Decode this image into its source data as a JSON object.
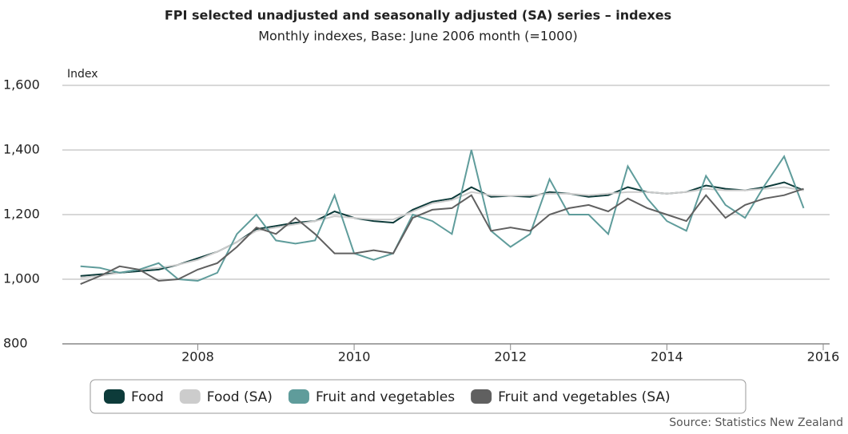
{
  "chart_data": {
    "type": "line",
    "title": "FPI selected unadjusted and seasonally adjusted (SA) series – indexes",
    "subtitle": "Monthly indexes, Base: June 2006 month (=1000)",
    "ylabel": "Index",
    "source": "Source: Statistics New Zealand",
    "x": [
      2006.5,
      2006.75,
      2007,
      2007.25,
      2007.5,
      2007.75,
      2008,
      2008.25,
      2008.5,
      2008.75,
      2009,
      2009.25,
      2009.5,
      2009.75,
      2010,
      2010.25,
      2010.5,
      2010.75,
      2011,
      2011.25,
      2011.5,
      2011.75,
      2012,
      2012.25,
      2012.5,
      2012.75,
      2013,
      2013.25,
      2013.5,
      2013.75,
      2014,
      2014.25,
      2014.5,
      2014.75,
      2015,
      2015.25,
      2015.5,
      2015.75
    ],
    "xlim": [
      2006.37,
      2016
    ],
    "xticks": [
      2008,
      2010,
      2012,
      2014,
      2016
    ],
    "ylim": [
      800,
      1600
    ],
    "yticks": [
      {
        "value": 800,
        "label": "800"
      },
      {
        "value": 1000,
        "label": "1,000"
      },
      {
        "value": 1200,
        "label": "1,200"
      },
      {
        "value": 1400,
        "label": "1,400"
      },
      {
        "value": 1600,
        "label": "1,600"
      }
    ],
    "grid": true,
    "legend": "bottom",
    "series": [
      {
        "name": "Food",
        "color": "#0d3b3a",
        "values": [
          1010,
          1015,
          1020,
          1025,
          1030,
          1045,
          1065,
          1085,
          1115,
          1155,
          1165,
          1175,
          1180,
          1210,
          1190,
          1180,
          1175,
          1215,
          1240,
          1250,
          1285,
          1255,
          1258,
          1255,
          1270,
          1265,
          1255,
          1260,
          1285,
          1270,
          1265,
          1270,
          1290,
          1280,
          1275,
          1285,
          1300,
          1275
        ]
      },
      {
        "name": "Food (SA)",
        "color": "#cccccc",
        "values": [
          1005,
          1010,
          1020,
          1030,
          1035,
          1045,
          1060,
          1085,
          1115,
          1150,
          1160,
          1170,
          1180,
          1195,
          1190,
          1185,
          1185,
          1210,
          1235,
          1245,
          1270,
          1260,
          1258,
          1260,
          1265,
          1265,
          1260,
          1265,
          1270,
          1270,
          1265,
          1270,
          1280,
          1275,
          1275,
          1280,
          1285,
          1275
        ]
      },
      {
        "name": "Fruit and vegetables",
        "color": "#5f9c9b",
        "values": [
          1040,
          1035,
          1020,
          1030,
          1050,
          1000,
          995,
          1020,
          1140,
          1200,
          1120,
          1110,
          1120,
          1260,
          1080,
          1060,
          1080,
          1200,
          1180,
          1140,
          1400,
          1150,
          1100,
          1140,
          1310,
          1200,
          1200,
          1140,
          1350,
          1250,
          1180,
          1150,
          1320,
          1230,
          1190,
          1290,
          1380,
          1220
        ]
      },
      {
        "name": "Fruit and vegetables (SA)",
        "color": "#606060",
        "values": [
          985,
          1010,
          1040,
          1030,
          995,
          1000,
          1030,
          1050,
          1100,
          1160,
          1140,
          1190,
          1140,
          1080,
          1080,
          1090,
          1080,
          1190,
          1215,
          1220,
          1260,
          1150,
          1160,
          1150,
          1200,
          1220,
          1230,
          1210,
          1250,
          1220,
          1200,
          1180,
          1260,
          1190,
          1230,
          1250,
          1260,
          1280
        ]
      }
    ]
  }
}
